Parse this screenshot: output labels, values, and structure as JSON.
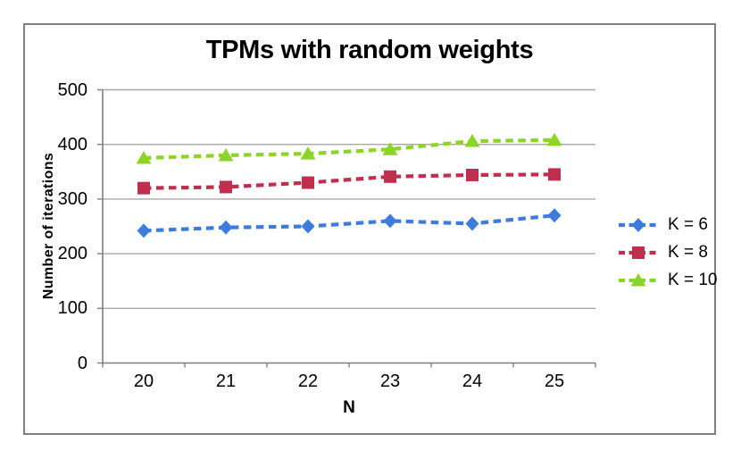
{
  "chart_data": {
    "type": "line",
    "title": "TPMs with random weights",
    "xlabel": "N",
    "ylabel": "Number of iterations",
    "categories": [
      "20",
      "21",
      "22",
      "23",
      "24",
      "25"
    ],
    "y_ticks": [
      "0",
      "100",
      "200",
      "300",
      "400",
      "500"
    ],
    "ylim": [
      0,
      500
    ],
    "grid": "horizontal-only",
    "line_style": "dashed",
    "legend_position": "right",
    "series": [
      {
        "name": "K = 6",
        "marker": "diamond",
        "color": "#3E7CDC",
        "values": [
          242,
          248,
          250,
          260,
          255,
          270
        ]
      },
      {
        "name": "K = 8",
        "marker": "square",
        "color": "#C12F4F",
        "values": [
          320,
          322,
          330,
          341,
          344,
          345
        ]
      },
      {
        "name": "K = 10",
        "marker": "triangle",
        "color": "#8CD427",
        "values": [
          375,
          380,
          383,
          391,
          406,
          408
        ]
      }
    ],
    "colors": {
      "gridline": "#A6A6A6",
      "axis": "#7F7F7F",
      "frame_border": "#7F7F7F",
      "text": "#000000",
      "background": "#FFFFFF"
    }
  }
}
